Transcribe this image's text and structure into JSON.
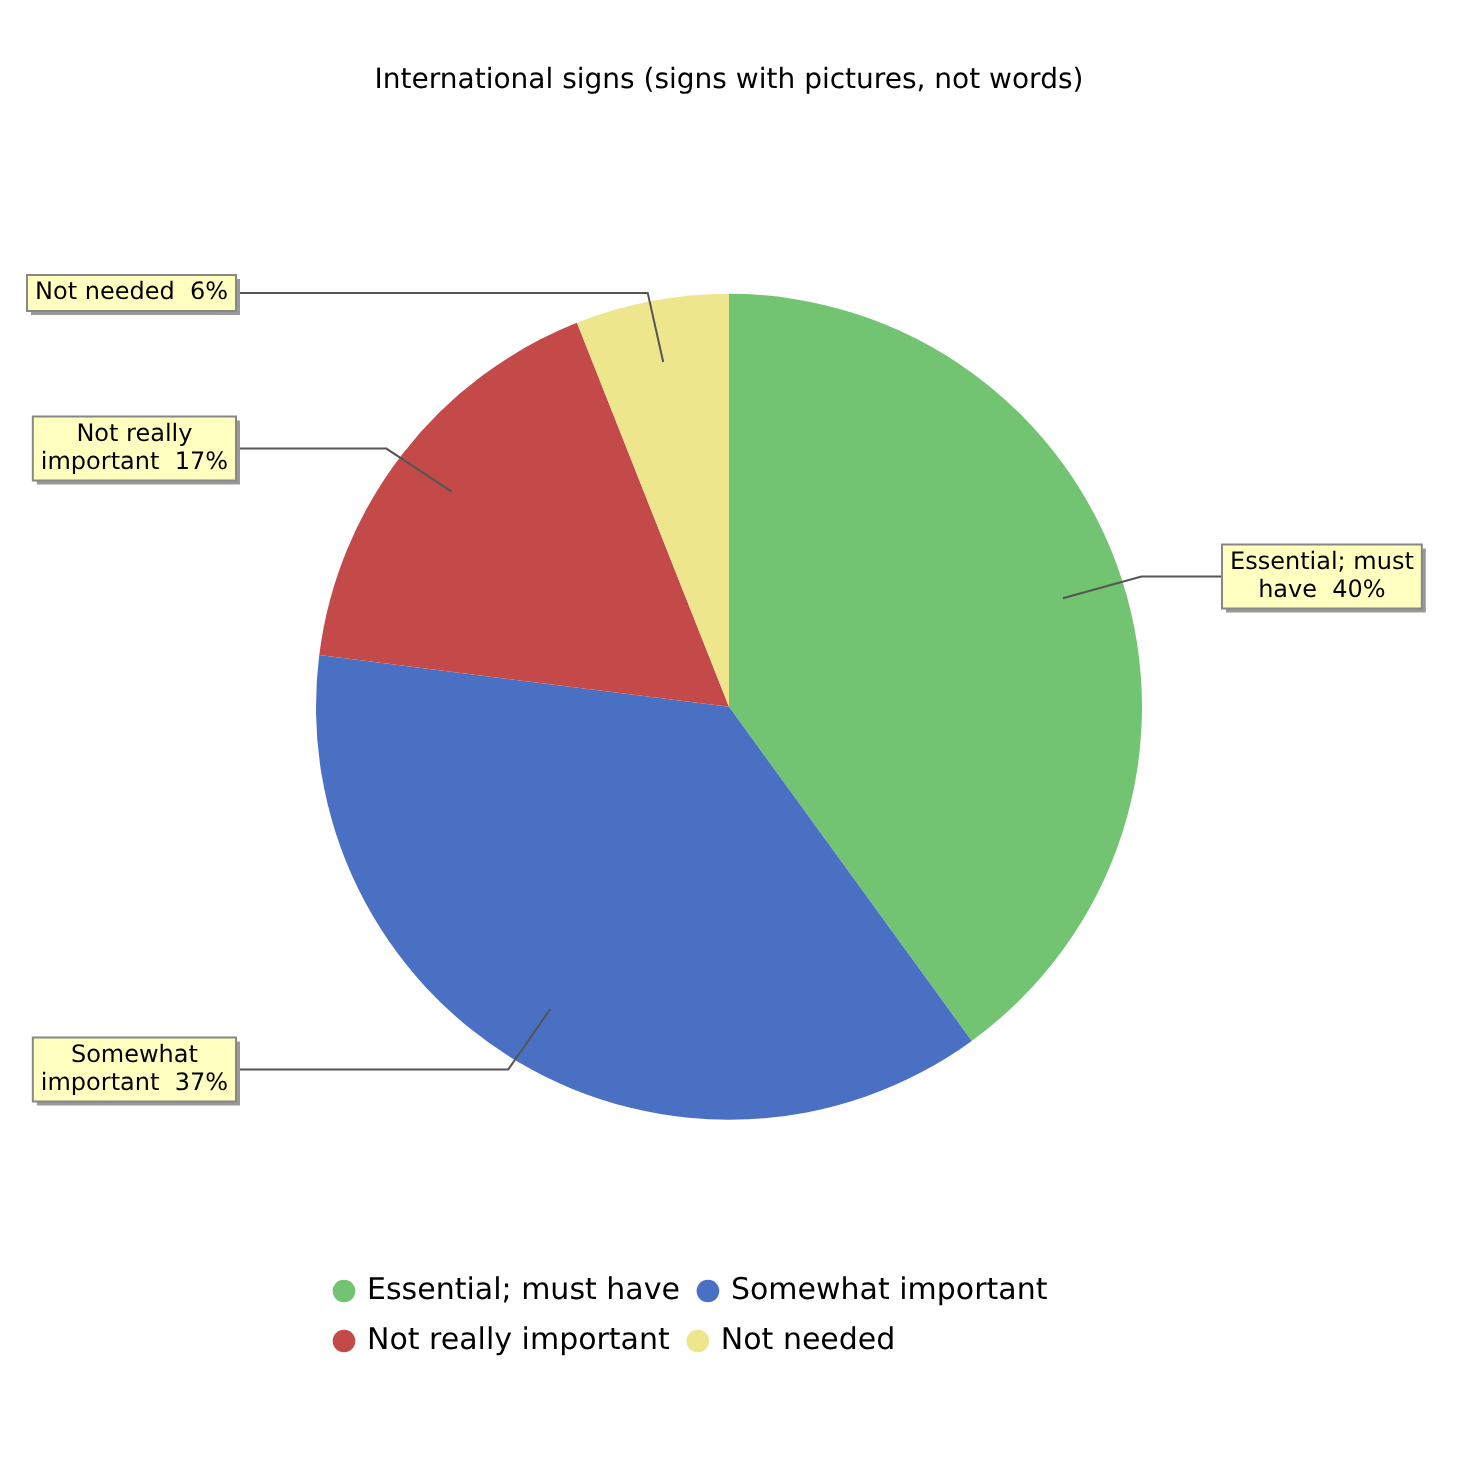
{
  "chart_data": {
    "type": "pie",
    "title": "International signs (signs with pictures, not words)",
    "categories": [
      "Essential; must have",
      "Somewhat important",
      "Not really important",
      "Not needed"
    ],
    "values": [
      40,
      37,
      17,
      6
    ],
    "value_labels": [
      "40%",
      "37%",
      "17%",
      "6%"
    ],
    "colors": [
      "#72c472",
      "#4a70c4",
      "#c44a4a",
      "#eee68c"
    ],
    "legend": "bottom"
  }
}
